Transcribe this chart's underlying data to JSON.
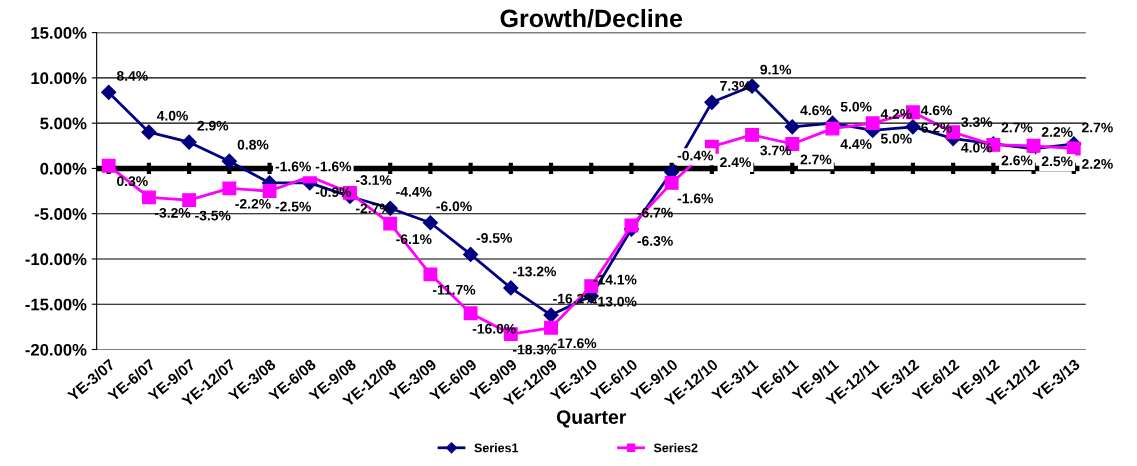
{
  "chart_data": {
    "type": "line",
    "title": "Growth/Decline",
    "xlabel": "Quarter",
    "categories": [
      "YE-3/07",
      "YE-6/07",
      "YE-9/07",
      "YE-12/07",
      "YE-3/08",
      "YE-6/08",
      "YE-9/08",
      "YE-12/08",
      "YE-3/09",
      "YE-6/09",
      "YE-9/09",
      "YE-12/09",
      "YE-3/10",
      "YE-6/10",
      "YE-9/10",
      "YE-12/10",
      "YE-3/11",
      "YE-6/11",
      "YE-9/11",
      "YE-12/11",
      "YE-3/12",
      "YE-6/12",
      "YE-9/12",
      "YE-12/12",
      "YE-3/13"
    ],
    "series": [
      {
        "name": "Series1",
        "color": "#000080",
        "marker": "diamond",
        "values": [
          8.4,
          4.0,
          2.9,
          0.8,
          -1.6,
          -1.6,
          -3.1,
          -4.4,
          -6.0,
          -9.5,
          -13.2,
          -16.2,
          -14.1,
          -6.7,
          -0.4,
          7.3,
          9.1,
          4.6,
          5.0,
          4.2,
          4.6,
          3.3,
          2.7,
          2.2,
          2.7
        ],
        "value_labels": [
          "8.4%",
          "4.0%",
          "2.9%",
          "0.8%",
          "-1.6%",
          "-1.6%",
          "-3.1%",
          "-4.4%",
          "-6.0%",
          "-9.5%",
          "-13.2%",
          "-16.2%",
          "-14.1%",
          "-6.7%",
          "-0.4%",
          "7.3%",
          "9.1%",
          "4.6%",
          "5.0%",
          "4.2%",
          "4.6%",
          "3.3%",
          "2.7%",
          "2.2%",
          "2.7%"
        ]
      },
      {
        "name": "Series2",
        "color": "#ff00ff",
        "marker": "square",
        "values": [
          0.3,
          -3.2,
          -3.5,
          -2.2,
          -2.5,
          -0.9,
          -2.7,
          -6.1,
          -11.7,
          -16.0,
          -18.3,
          -17.6,
          -13.0,
          -6.3,
          -1.6,
          2.4,
          3.7,
          2.7,
          4.4,
          5.0,
          6.2,
          4.0,
          2.6,
          2.5,
          2.2
        ],
        "value_labels": [
          "0.3%",
          "-3.2%",
          "-3.5%",
          "-2.2%",
          "-2.5%",
          "-0.9%",
          "-2.7%",
          "-6.1%",
          "-11.7%",
          "-16.0%",
          "-18.3%",
          "-17.6%",
          "-13.0%",
          "-6.3%",
          "-1.6%",
          "2.4%",
          "3.7%",
          "2.7%",
          "4.4%",
          "5.0%",
          "6.2%",
          "4.0%",
          "2.6%",
          "2.5%",
          "2.2%"
        ]
      }
    ],
    "ylim": [
      -20,
      15
    ],
    "yticks": [
      {
        "value": -20,
        "label": "-20.00%"
      },
      {
        "value": -15,
        "label": "-15.00%"
      },
      {
        "value": -10,
        "label": "-10.00%"
      },
      {
        "value": -5,
        "label": "-5.00%"
      },
      {
        "value": 0,
        "label": "0.00%"
      },
      {
        "value": 5,
        "label": "5.00%"
      },
      {
        "value": 10,
        "label": "10.00%"
      },
      {
        "value": 15,
        "label": "15.00%"
      }
    ],
    "grid": "y",
    "legend": "bottom",
    "line_style": "solid"
  }
}
